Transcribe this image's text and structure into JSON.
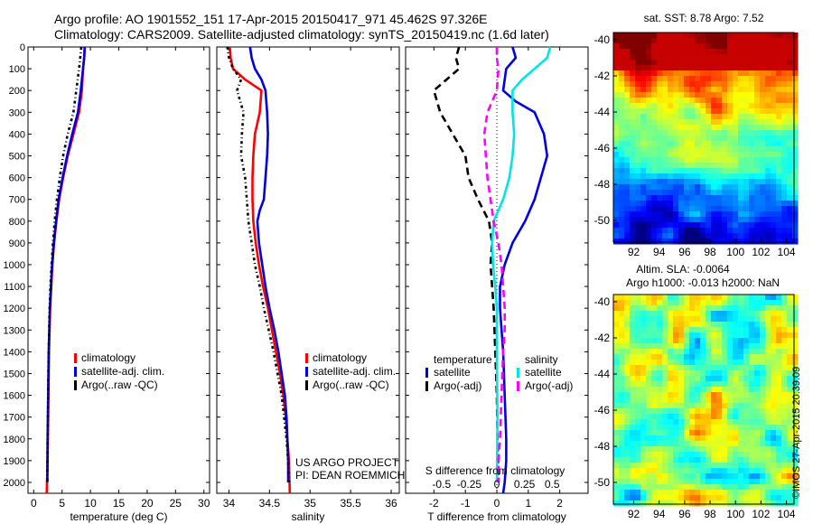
{
  "header": {
    "title_line1": "Argo profile: AO 1901552_151 17-Apr-2015 20150417_971 45.462S 97.326E",
    "title_line2": "Climatology: CARS2009. Satellite-adjusted climatology: synTS_20150419.nc (1.6d later)"
  },
  "credit": "©IMOS 27-Apr-2015 20:39:09",
  "colors": {
    "climatology": "#ff0000",
    "satellite_adj": "#0000dd",
    "argo": "#000000",
    "satellite_salinity": "#00e5e5",
    "argo_adj_salinity": "#ff00ff"
  },
  "chart_data": [
    {
      "type": "line",
      "panel": "temperature",
      "xlabel": "temperature (deg C)",
      "ylabel": "",
      "xlim": [
        -1,
        31
      ],
      "ylim": [
        2050,
        0
      ],
      "xticks": [
        "0",
        "5",
        "10",
        "15",
        "20",
        "25",
        "30"
      ],
      "xtick_values": [
        0,
        5,
        10,
        15,
        20,
        25,
        30
      ],
      "yticks": [
        "0",
        "100",
        "200",
        "300",
        "400",
        "500",
        "600",
        "700",
        "800",
        "900",
        "1000",
        "1100",
        "1200",
        "1300",
        "1400",
        "1500",
        "1600",
        "1700",
        "1800",
        "1900",
        "2000"
      ],
      "ytick_values": [
        0,
        100,
        200,
        300,
        400,
        500,
        600,
        700,
        800,
        900,
        1000,
        1100,
        1200,
        1300,
        1400,
        1500,
        1600,
        1700,
        1800,
        1900,
        2000
      ],
      "legend": [
        "climatology",
        "satellite-adj. clim.",
        "Argo(..raw -QC)"
      ],
      "legend_colors": [
        "#ff0000",
        "#0000dd",
        "#000000"
      ],
      "series": [
        {
          "name": "climatology",
          "color": "#ff0000",
          "style": "solid",
          "x": [
            9.0,
            8.9,
            8.7,
            8.5,
            8.0,
            7.0,
            6.0,
            5.2,
            4.5,
            4.0,
            3.6,
            3.3,
            3.1,
            2.9,
            2.7,
            2.6,
            2.5,
            2.45,
            2.4,
            2.35,
            2.3
          ],
          "y": [
            0,
            50,
            100,
            200,
            300,
            400,
            500,
            600,
            700,
            800,
            900,
            1000,
            1100,
            1200,
            1400,
            1600,
            1800,
            1900,
            1950,
            2000,
            2050
          ]
        },
        {
          "name": "satellite-adj. clim.",
          "color": "#0000dd",
          "style": "solid",
          "x": [
            9.0,
            8.9,
            8.7,
            8.3,
            7.8,
            6.8,
            5.9,
            5.1,
            4.4,
            3.95,
            3.55,
            3.25,
            3.05,
            2.85,
            2.65,
            2.55,
            2.45,
            2.42,
            2.4
          ],
          "y": [
            0,
            50,
            100,
            200,
            300,
            400,
            500,
            600,
            700,
            800,
            900,
            1000,
            1100,
            1200,
            1400,
            1600,
            1800,
            1900,
            2000
          ]
        },
        {
          "name": "Argo(..raw -QC)",
          "color": "#000000",
          "style": "dashdot",
          "x": [
            8.4,
            8.2,
            8.0,
            7.5,
            7.0,
            6.0,
            5.2,
            4.6,
            4.1,
            3.7,
            3.4,
            3.15,
            2.95,
            2.8,
            2.65,
            2.55,
            2.45,
            2.4
          ],
          "y": [
            0,
            50,
            100,
            200,
            300,
            400,
            500,
            600,
            700,
            800,
            900,
            1000,
            1100,
            1200,
            1400,
            1600,
            1800,
            2000
          ]
        }
      ]
    },
    {
      "type": "line",
      "panel": "salinity",
      "xlabel": "salinity",
      "ylabel": "",
      "xlim": [
        33.85,
        36.1
      ],
      "ylim": [
        2050,
        0
      ],
      "xticks": [
        "34",
        "34.5",
        "35",
        "35.5",
        "36"
      ],
      "xtick_values": [
        34,
        34.5,
        35,
        35.5,
        36
      ],
      "legend": [
        "climatology",
        "satellite-adj. clim.",
        "Argo(..raw -QC)"
      ],
      "legend_colors": [
        "#ff0000",
        "#0000dd",
        "#000000"
      ],
      "annotations": [
        "US ARGO PROJECT",
        "PI: DEAN ROEMMICH"
      ],
      "series": [
        {
          "name": "climatology",
          "color": "#ff0000",
          "style": "solid",
          "x": [
            34.01,
            34.02,
            34.05,
            34.2,
            34.4,
            34.38,
            34.32,
            34.3,
            34.29,
            34.29,
            34.3,
            34.33,
            34.37,
            34.42,
            34.48,
            34.53,
            34.58,
            34.63,
            34.67,
            34.7,
            34.72,
            34.74,
            34.75
          ],
          "y": [
            0,
            50,
            100,
            150,
            200,
            300,
            400,
            500,
            600,
            700,
            800,
            900,
            1000,
            1100,
            1200,
            1300,
            1400,
            1500,
            1600,
            1700,
            1800,
            1900,
            2050
          ]
        },
        {
          "name": "satellite-adj. clim.",
          "color": "#0000dd",
          "style": "solid",
          "x": [
            34.26,
            34.28,
            34.32,
            34.4,
            34.45,
            34.47,
            34.48,
            34.47,
            34.45,
            34.43,
            34.38,
            34.35,
            34.37,
            34.41,
            34.45,
            34.5,
            34.56,
            34.61,
            34.65,
            34.69,
            34.71,
            34.72,
            34.73,
            34.73
          ],
          "y": [
            0,
            50,
            100,
            150,
            200,
            300,
            400,
            500,
            600,
            700,
            750,
            800,
            900,
            1000,
            1100,
            1200,
            1300,
            1400,
            1500,
            1600,
            1700,
            1800,
            1900,
            2000
          ]
        },
        {
          "name": "Argo(..raw -QC)",
          "color": "#000000",
          "style": "dashdot",
          "x": [
            33.98,
            34.0,
            34.05,
            34.15,
            34.1,
            34.18,
            34.16,
            34.15,
            34.2,
            34.22,
            34.24,
            34.28,
            34.32,
            34.38,
            34.43,
            34.49,
            34.55,
            34.6,
            34.65,
            34.68,
            34.71,
            34.73,
            34.74
          ],
          "y": [
            0,
            50,
            100,
            150,
            200,
            300,
            400,
            500,
            600,
            700,
            800,
            900,
            1000,
            1100,
            1200,
            1300,
            1400,
            1500,
            1600,
            1700,
            1800,
            1900,
            2000
          ]
        }
      ]
    },
    {
      "type": "line",
      "panel": "differences",
      "xlabel": "T difference from climatology",
      "top_label": "S difference from climatology",
      "xlim": [
        -2.9,
        2.9
      ],
      "ylim": [
        2050,
        0
      ],
      "xticks": [
        "-2",
        "-1",
        "0",
        "1",
        "2"
      ],
      "xtick_values": [
        -2,
        -1,
        0,
        1,
        2
      ],
      "s_ticks": [
        "-0.5",
        "-0.25",
        "0",
        "0.25",
        "0.5"
      ],
      "s_tick_values": [
        -0.5,
        -0.25,
        0,
        0.25,
        0.5
      ],
      "legend_headers": [
        "temperature",
        "salinity"
      ],
      "legend": [
        "satellite",
        "Argo(-adj)",
        "satellite",
        "Argo(-adj)"
      ],
      "legend_colors": [
        "#0000dd",
        "#000000",
        "#00e5e5",
        "#ff00ff"
      ],
      "series": [
        {
          "name": "satellite",
          "group": "temperature",
          "color": "#0000dd",
          "style": "solid",
          "x": [
            0.5,
            0.6,
            0.3,
            0.2,
            0.6,
            1.2,
            1.5,
            1.6,
            1.4,
            1.2,
            0.9,
            0.5,
            0.25,
            0.1,
            0.1,
            0.2,
            0.25,
            0.3,
            0.3,
            0.25,
            0.2
          ],
          "y": [
            0,
            50,
            100,
            200,
            250,
            300,
            400,
            500,
            600,
            700,
            800,
            900,
            1000,
            1100,
            1200,
            1400,
            1600,
            1800,
            1900,
            2000,
            2050
          ]
        },
        {
          "name": "Argo(-adj)",
          "group": "temperature",
          "color": "#000000",
          "style": "dashed",
          "x": [
            -1.2,
            -1.3,
            -1.2,
            -1.6,
            -2.0,
            -1.8,
            -1.4,
            -1.0,
            -0.9,
            -0.6,
            -0.25,
            -0.15,
            -0.2,
            -0.15,
            -0.1,
            -0.05,
            0.0,
            0.02,
            0.05
          ],
          "y": [
            0,
            50,
            100,
            150,
            200,
            300,
            400,
            500,
            600,
            700,
            800,
            900,
            1000,
            1100,
            1200,
            1400,
            1600,
            1800,
            2000
          ]
        },
        {
          "name": "satellite",
          "group": "salinity",
          "color": "#00e5e5",
          "style": "solid",
          "x": [
            1.7,
            1.6,
            1.2,
            0.8,
            0.5,
            0.5,
            0.55,
            0.5,
            0.4,
            0.2,
            -0.1,
            -0.15,
            -0.12,
            -0.05,
            0.0,
            0.0,
            0.02,
            0.0
          ],
          "y": [
            0,
            50,
            100,
            150,
            200,
            300,
            400,
            500,
            600,
            700,
            800,
            900,
            1000,
            1100,
            1200,
            1400,
            1700,
            2000
          ]
        },
        {
          "name": "Argo(-adj)",
          "group": "salinity",
          "color": "#ff00ff",
          "style": "dashed",
          "x": [
            0.0,
            0.0,
            0.05,
            0.0,
            -0.3,
            -0.4,
            -0.35,
            -0.3,
            -0.2,
            -0.1,
            0.05,
            0.15,
            0.2,
            0.25,
            0.25,
            0.2,
            0.15,
            0.1,
            0.05,
            0.05
          ],
          "y": [
            0,
            50,
            100,
            200,
            300,
            400,
            500,
            600,
            700,
            800,
            900,
            1000,
            1100,
            1200,
            1300,
            1400,
            1600,
            1800,
            1900,
            2000
          ]
        }
      ],
      "reference_line": {
        "x": 0,
        "style": "dotted"
      }
    },
    {
      "type": "heatmap",
      "panel": "sst_map",
      "title": "sat. SST: 8.78 Argo: 7.52",
      "xticks": [
        "92",
        "94",
        "96",
        "98",
        "100",
        "102",
        "104"
      ],
      "xtick_values": [
        92,
        94,
        96,
        98,
        100,
        102,
        104
      ],
      "yticks": [
        "-40",
        "-42",
        "-44",
        "-46",
        "-48",
        "-50"
      ],
      "ytick_values": [
        -40,
        -42,
        -44,
        -46,
        -48,
        -50
      ],
      "xlim": [
        90.4,
        104.6
      ],
      "ylim": [
        -51.2,
        -39.6
      ],
      "float_position": [
        97.326,
        -45.462
      ]
    },
    {
      "type": "heatmap",
      "panel": "sla_map",
      "title_line1": "Altim. SLA: -0.0064",
      "title_line2": "Argo h1000: -0.013 h2000: NaN",
      "xticks": [
        "92",
        "94",
        "96",
        "98",
        "100",
        "102",
        "104"
      ],
      "xtick_values": [
        92,
        94,
        96,
        98,
        100,
        102,
        104
      ],
      "yticks": [
        "-40",
        "-42",
        "-44",
        "-46",
        "-48",
        "-50"
      ],
      "ytick_values": [
        -40,
        -42,
        -44,
        -46,
        -48,
        -50
      ],
      "xlim": [
        90.4,
        104.6
      ],
      "ylim": [
        -51.2,
        -39.6
      ],
      "float_position": [
        97.326,
        -45.462
      ]
    }
  ]
}
